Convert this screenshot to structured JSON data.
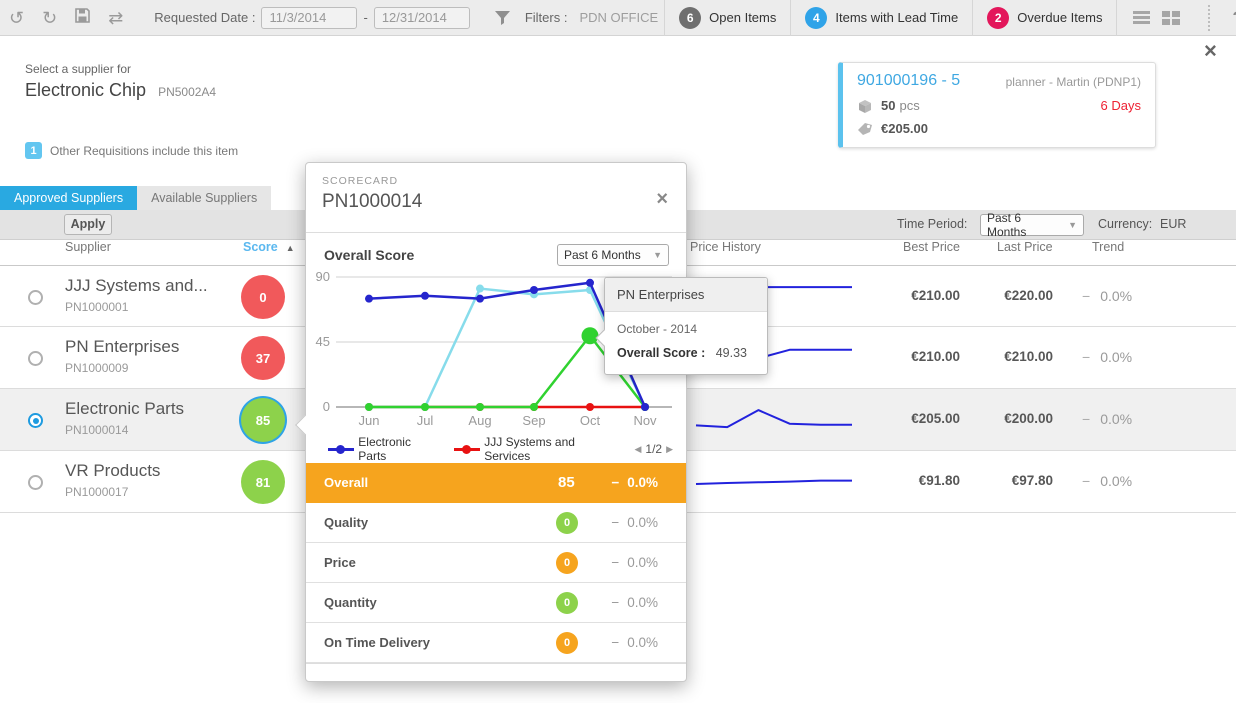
{
  "toolbar": {
    "requested_date_label": "Requested Date :",
    "date_from": "11/3/2014",
    "date_separator": "-",
    "date_to": "12/31/2014",
    "filters_label": "Filters :",
    "filters_value": "PDN OFFICE",
    "badges": [
      {
        "count": "6",
        "label": "Open Items",
        "color": "#6f6f6f"
      },
      {
        "count": "4",
        "label": "Items with Lead Time",
        "color": "#2fa3e8"
      },
      {
        "count": "2",
        "label": "Overdue Items",
        "color": "#e3175b"
      }
    ],
    "help_label": "?"
  },
  "header": {
    "prompt": "Select a supplier for",
    "item_name": "Electronic Chip",
    "part_number": "PN5002A4"
  },
  "other_requisitions": {
    "count": "1",
    "label": "Other Requisitions include this item"
  },
  "requisition_card": {
    "id": "901000196 - 5",
    "planner": "planner - Martin (PDNP1)",
    "quantity": "50",
    "unit": "pcs",
    "days": "6 Days",
    "price": "€205.00"
  },
  "tabs": {
    "approved": "Approved Suppliers",
    "available": "Available Suppliers"
  },
  "controls": {
    "apply": "Apply",
    "time_period_label": "Time Period:",
    "time_period_value": "Past 6 Months",
    "currency_label": "Currency:",
    "currency_value": "EUR"
  },
  "table": {
    "headers": {
      "supplier": "Supplier",
      "score": "Score",
      "sort_arrow": "▲",
      "price_history": "Price History",
      "best_price": "Best Price",
      "last_price": "Last Price",
      "trend": "Trend"
    },
    "trend_dash": "−",
    "suppliers": [
      {
        "name": "JJJ Systems and...",
        "code": "PN1000001",
        "score": 0,
        "score_color": "red",
        "selected": false,
        "best_price": "€210.00",
        "last_price": "€220.00",
        "trend": "0.0%",
        "spark": [
          0.25,
          0.6,
          0.85,
          0.85,
          0.85,
          0.85
        ]
      },
      {
        "name": "PN Enterprises",
        "code": "PN1000009",
        "score": 37,
        "score_color": "red",
        "selected": false,
        "best_price": "€210.00",
        "last_price": "€210.00",
        "trend": "0.0%",
        "spark": [
          0.2,
          0.2,
          0.55,
          0.8,
          0.8,
          0.8
        ]
      },
      {
        "name": "Electronic Parts",
        "code": "PN1000014",
        "score": 85,
        "score_color": "green",
        "selected": true,
        "best_price": "€205.00",
        "last_price": "€200.00",
        "trend": "0.0%",
        "spark": [
          0.4,
          0.35,
          0.85,
          0.45,
          0.42,
          0.42
        ]
      },
      {
        "name": "VR Products",
        "code": "PN1000017",
        "score": 81,
        "score_color": "green",
        "selected": false,
        "best_price": "€91.80",
        "last_price": "€97.80",
        "trend": "0.0%",
        "spark": [
          0.5,
          0.53,
          0.55,
          0.57,
          0.6,
          0.6
        ]
      }
    ]
  },
  "scorecard": {
    "title": "SCORECARD",
    "part_number": "PN1000014",
    "section_title": "Overall Score",
    "period_value": "Past 6 Months",
    "trend_dash": "−",
    "legend_prev": "◀",
    "legend_pagination": "1/2",
    "legend_next": "▶",
    "metrics": [
      {
        "label": "Overall",
        "score": 85,
        "badge": null,
        "row_style": "orange",
        "trend": "0.0%"
      },
      {
        "label": "Quality",
        "score": 0,
        "badge": "green",
        "row_style": null,
        "trend": "0.0%"
      },
      {
        "label": "Price",
        "score": 0,
        "badge": "orange",
        "row_style": null,
        "trend": "0.0%"
      },
      {
        "label": "Quantity",
        "score": 0,
        "badge": "green",
        "row_style": null,
        "trend": "0.0%"
      },
      {
        "label": "On Time Delivery",
        "score": 0,
        "badge": "orange",
        "row_style": null,
        "trend": "0.0%"
      }
    ],
    "tooltip": {
      "supplier": "PN Enterprises",
      "period": "October - 2014",
      "label": "Overall Score :",
      "value": "49.33"
    }
  },
  "chart_data": {
    "type": "line",
    "title": "Overall Score",
    "x_labels": [
      "Jun",
      "Jul",
      "Aug",
      "Sep",
      "Oct",
      "Nov"
    ],
    "y_ticks": [
      0,
      45,
      90
    ],
    "y_range": [
      0,
      90
    ],
    "grid": true,
    "legend_position": "bottom",
    "legend_pagination": "1/2",
    "series": [
      {
        "name": "Electronic Parts",
        "color": "#2525cd",
        "values": [
          75,
          77,
          75,
          81,
          86,
          0
        ]
      },
      {
        "name": "JJJ Systems and Services",
        "color": "#e81212",
        "values": [
          0,
          0,
          0,
          0,
          0,
          0
        ]
      },
      {
        "name": "PN Enterprises",
        "color": "#30d230",
        "values": [
          0,
          0,
          0,
          0,
          49.33,
          0
        ],
        "highlighted_point": {
          "x": "Oct",
          "value": 49.33
        }
      },
      {
        "name": "",
        "color": "#87dceb",
        "values": [
          0,
          0,
          82,
          78,
          81,
          0
        ]
      }
    ]
  },
  "colors": {
    "accent_blue": "#29a9e1",
    "link_blue": "#3fa8e2",
    "score_red": "#f1595b",
    "score_green": "#8dd24b",
    "warn_orange": "#f6a41e",
    "badge_gray": "#6f6f6f",
    "badge_blue": "#2fa3e8",
    "badge_crimson": "#e3175b",
    "days_red": "#ee2233",
    "card_accent": "#5bc2ee",
    "sparkline_blue": "#2222dd"
  }
}
